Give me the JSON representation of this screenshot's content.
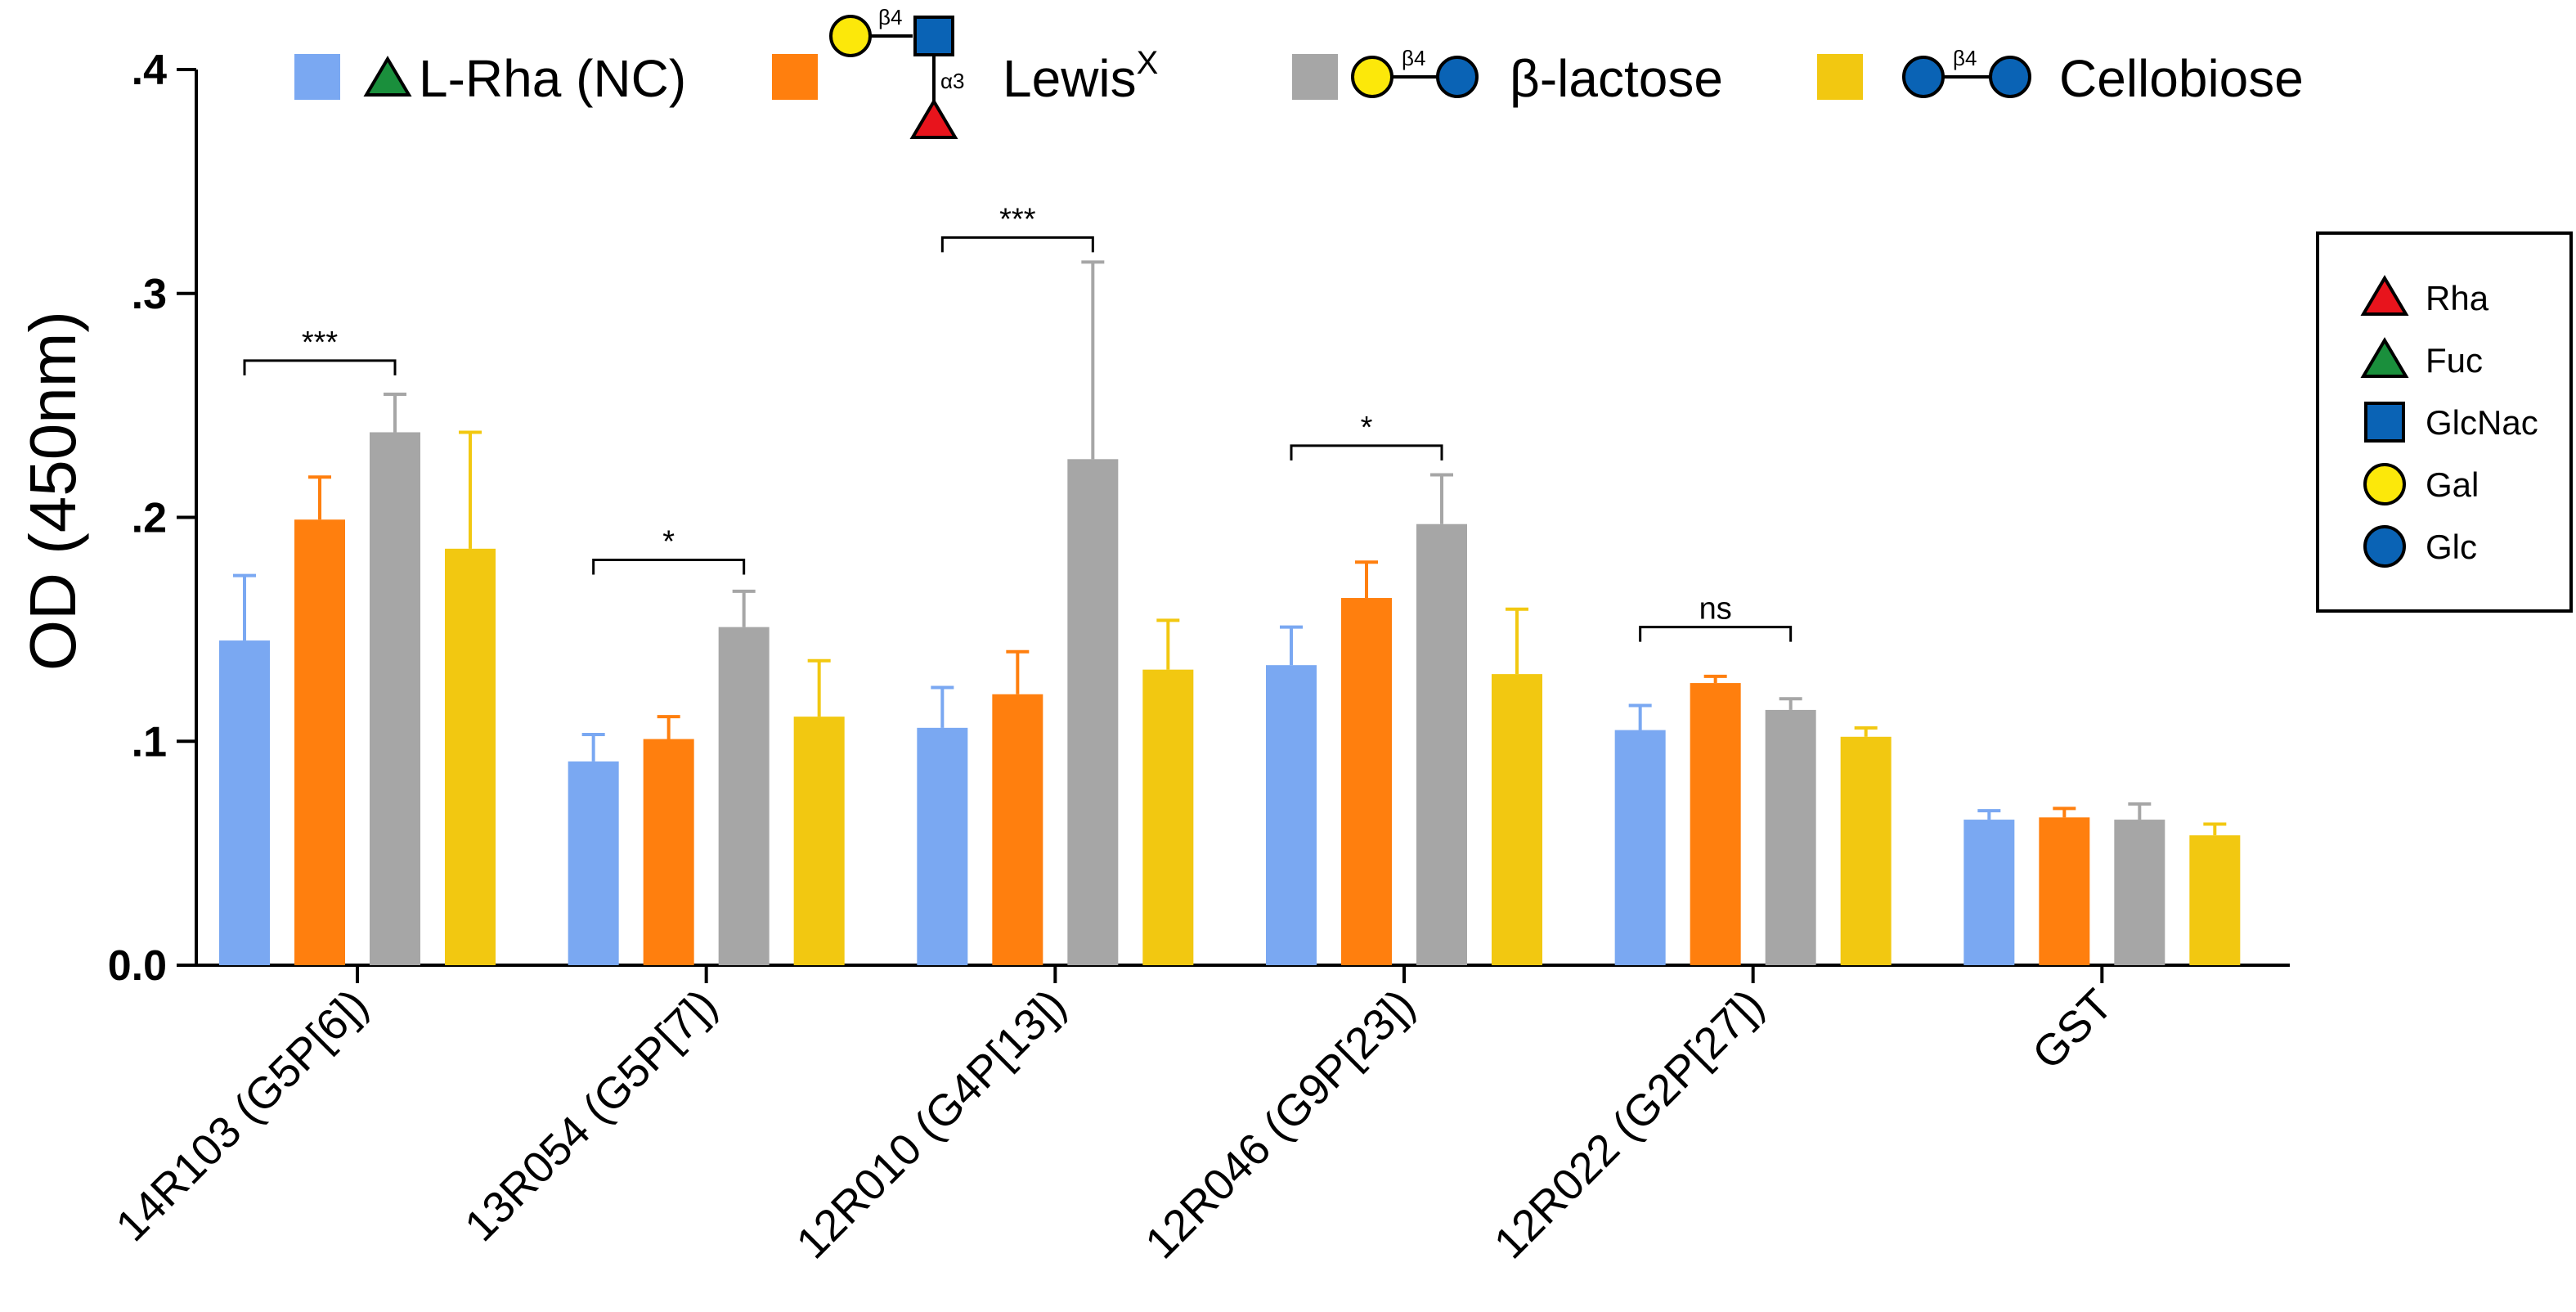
{
  "chart_data": {
    "type": "bar",
    "title": "",
    "ylabel": "OD (450nm)",
    "xlabel": "",
    "ylim": [
      0,
      0.4
    ],
    "yticks": [
      0.0,
      0.1,
      0.2,
      0.3,
      0.4
    ],
    "ytick_labels": [
      "0.0",
      ".1",
      ".2",
      ".3",
      ".4"
    ],
    "categories": [
      "14R103 (G5P[6])",
      "13R054 (G5P[7])",
      "12R010 (G4P[13])",
      "12R046 (G9P[23])",
      "12R022 (G2P[27])",
      "GST"
    ],
    "series": [
      {
        "name": "L-Rha (NC)",
        "color": "#7aa8f2",
        "values": [
          0.145,
          0.091,
          0.106,
          0.134,
          0.105,
          0.065
        ],
        "errors": [
          0.029,
          0.012,
          0.018,
          0.017,
          0.011,
          0.004
        ]
      },
      {
        "name": "Lewis",
        "name_superscript": "X",
        "color": "#ff7f0e",
        "values": [
          0.199,
          0.101,
          0.121,
          0.164,
          0.126,
          0.066
        ],
        "errors": [
          0.019,
          0.01,
          0.019,
          0.016,
          0.003,
          0.004
        ]
      },
      {
        "name": "β-lactose",
        "color": "#a6a6a6",
        "values": [
          0.238,
          0.151,
          0.226,
          0.197,
          0.114,
          0.065
        ],
        "errors": [
          0.017,
          0.016,
          0.088,
          0.022,
          0.005,
          0.007
        ]
      },
      {
        "name": "Cellobiose",
        "color": "#f2c811",
        "values": [
          0.186,
          0.111,
          0.132,
          0.13,
          0.102,
          0.058
        ],
        "errors": [
          0.052,
          0.025,
          0.022,
          0.029,
          0.004,
          0.005
        ]
      }
    ],
    "significance": [
      {
        "category_index": 0,
        "from_series": 0,
        "to_series": 2,
        "y": 0.27,
        "label": "***"
      },
      {
        "category_index": 1,
        "from_series": 0,
        "to_series": 2,
        "y": 0.181,
        "label": "*"
      },
      {
        "category_index": 2,
        "from_series": 0,
        "to_series": 2,
        "y": 0.325,
        "label": "***"
      },
      {
        "category_index": 3,
        "from_series": 0,
        "to_series": 2,
        "y": 0.232,
        "label": "*"
      },
      {
        "category_index": 4,
        "from_series": 0,
        "to_series": 2,
        "y": 0.151,
        "label": "ns"
      }
    ],
    "glycan_labels": {
      "beta4": "β4",
      "alpha3": "α3"
    },
    "legend_position": "top",
    "symbol_key": {
      "position": "right",
      "items": [
        {
          "shape": "triangle",
          "color": "#e8141c",
          "label": "Rha"
        },
        {
          "shape": "triangle",
          "color": "#1a8f3c",
          "label": "Fuc"
        },
        {
          "shape": "square",
          "color": "#0a63b5",
          "label": "GlcNac"
        },
        {
          "shape": "circle",
          "color": "#fce80a",
          "label": "Gal"
        },
        {
          "shape": "circle",
          "color": "#0a63b5",
          "label": "Glc"
        }
      ]
    }
  }
}
